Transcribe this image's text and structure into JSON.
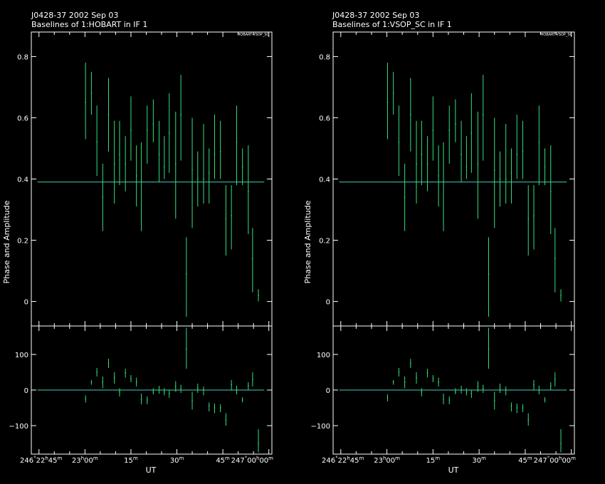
{
  "colors": {
    "background": "#000000",
    "frame": "#ffffff",
    "data": "#33e07a",
    "model": "#40d0c0"
  },
  "chart_data": [
    {
      "type": "scatter",
      "title": "J0428-37  2002 Sep 03",
      "subtitle": "Baselines of 1:HOBART in IF 1",
      "baseline_tag": "HOBART-VSOP_SC",
      "ylabel": "Phase and Amplitude",
      "xlabel": "UT",
      "xlim": [
        -17.5,
        61
      ],
      "x_tick_labels": [
        {
          "x": 0,
          "label": "246°22h45m"
        },
        {
          "x": 15,
          "label": "23h00m"
        },
        {
          "x": 30,
          "label": "15m"
        },
        {
          "x": 45,
          "label": "30m"
        },
        {
          "x": 60,
          "label": "45m"
        },
        {
          "x": 75,
          "label": "247°00h00m"
        }
      ],
      "amplitude": {
        "ylim": [
          -0.08,
          0.88
        ],
        "y_ticks": [
          0,
          0.2,
          0.4,
          0.6,
          0.8
        ],
        "y_tick_labels": [
          "0",
          "0.2",
          "0.4",
          "0.6",
          "0.8"
        ],
        "model": 0.39,
        "points": [
          {
            "x": 0.2,
            "y": 0.65,
            "lo": 0.53,
            "hi": 0.78
          },
          {
            "x": 2.1,
            "y": 0.68,
            "lo": 0.61,
            "hi": 0.75
          },
          {
            "x": 3.9,
            "y": 0.52,
            "lo": 0.41,
            "hi": 0.64
          },
          {
            "x": 5.8,
            "y": 0.34,
            "lo": 0.23,
            "hi": 0.45
          },
          {
            "x": 7.7,
            "y": 0.61,
            "lo": 0.49,
            "hi": 0.73
          },
          {
            "x": 9.6,
            "y": 0.45,
            "lo": 0.32,
            "hi": 0.59
          },
          {
            "x": 11.3,
            "y": 0.48,
            "lo": 0.38,
            "hi": 0.59
          },
          {
            "x": 13.2,
            "y": 0.45,
            "lo": 0.36,
            "hi": 0.54
          },
          {
            "x": 15.0,
            "y": 0.56,
            "lo": 0.46,
            "hi": 0.67
          },
          {
            "x": 16.8,
            "y": 0.41,
            "lo": 0.31,
            "hi": 0.51
          },
          {
            "x": 18.4,
            "y": 0.39,
            "lo": 0.23,
            "hi": 0.52
          },
          {
            "x": 20.3,
            "y": 0.56,
            "lo": 0.45,
            "hi": 0.64
          },
          {
            "x": 22.3,
            "y": 0.58,
            "lo": 0.52,
            "hi": 0.66
          },
          {
            "x": 24.2,
            "y": 0.48,
            "lo": 0.39,
            "hi": 0.59
          },
          {
            "x": 25.9,
            "y": 0.44,
            "lo": 0.4,
            "hi": 0.54
          },
          {
            "x": 27.5,
            "y": 0.55,
            "lo": 0.42,
            "hi": 0.68
          },
          {
            "x": 29.6,
            "y": 0.45,
            "lo": 0.27,
            "hi": 0.62
          },
          {
            "x": 31.3,
            "y": 0.61,
            "lo": 0.46,
            "hi": 0.74
          },
          {
            "x": 33.1,
            "y": 0.09,
            "lo": -0.05,
            "hi": 0.21
          },
          {
            "x": 35.0,
            "y": 0.43,
            "lo": 0.24,
            "hi": 0.6
          },
          {
            "x": 36.8,
            "y": 0.4,
            "lo": 0.31,
            "hi": 0.49
          },
          {
            "x": 38.7,
            "y": 0.4,
            "lo": 0.32,
            "hi": 0.58
          },
          {
            "x": 40.5,
            "y": 0.42,
            "lo": 0.32,
            "hi": 0.5
          },
          {
            "x": 42.3,
            "y": 0.48,
            "lo": 0.4,
            "hi": 0.61
          },
          {
            "x": 44.2,
            "y": 0.49,
            "lo": 0.4,
            "hi": 0.59
          },
          {
            "x": 46.0,
            "y": 0.27,
            "lo": 0.15,
            "hi": 0.38
          },
          {
            "x": 47.8,
            "y": 0.28,
            "lo": 0.17,
            "hi": 0.38
          },
          {
            "x": 49.5,
            "y": 0.52,
            "lo": 0.38,
            "hi": 0.64
          },
          {
            "x": 51.4,
            "y": 0.44,
            "lo": 0.38,
            "hi": 0.5
          },
          {
            "x": 53.3,
            "y": 0.36,
            "lo": 0.22,
            "hi": 0.51
          },
          {
            "x": 54.7,
            "y": 0.14,
            "lo": 0.03,
            "hi": 0.24
          },
          {
            "x": 56.6,
            "y": 0.02,
            "lo": 0.0,
            "hi": 0.04
          }
        ]
      },
      "phase": {
        "ylim": [
          -180,
          180
        ],
        "y_ticks": [
          -100,
          0,
          100
        ],
        "y_tick_labels": [
          "−100",
          "0",
          "100"
        ],
        "model": 0,
        "points": [
          {
            "x": 0.2,
            "y": -25,
            "lo": -35,
            "hi": -15
          },
          {
            "x": 2.1,
            "y": 22,
            "lo": 15,
            "hi": 28
          },
          {
            "x": 3.9,
            "y": 50,
            "lo": 38,
            "hi": 62
          },
          {
            "x": 5.8,
            "y": 22,
            "lo": 5,
            "hi": 38
          },
          {
            "x": 7.7,
            "y": 75,
            "lo": 62,
            "hi": 88
          },
          {
            "x": 9.6,
            "y": 35,
            "lo": 18,
            "hi": 50
          },
          {
            "x": 11.3,
            "y": -5,
            "lo": -18,
            "hi": 5
          },
          {
            "x": 13.2,
            "y": 48,
            "lo": 35,
            "hi": 60
          },
          {
            "x": 15.0,
            "y": 32,
            "lo": 22,
            "hi": 42
          },
          {
            "x": 16.8,
            "y": 22,
            "lo": 10,
            "hi": 35
          },
          {
            "x": 18.4,
            "y": -25,
            "lo": -40,
            "hi": -10
          },
          {
            "x": 20.3,
            "y": -28,
            "lo": -40,
            "hi": -18
          },
          {
            "x": 22.3,
            "y": -5,
            "lo": -12,
            "hi": 5
          },
          {
            "x": 24.2,
            "y": 0,
            "lo": -10,
            "hi": 12
          },
          {
            "x": 25.9,
            "y": -5,
            "lo": -15,
            "hi": 5
          },
          {
            "x": 27.5,
            "y": -10,
            "lo": -22,
            "hi": 0
          },
          {
            "x": 29.6,
            "y": 10,
            "lo": -5,
            "hi": 25
          },
          {
            "x": 31.3,
            "y": 5,
            "lo": -8,
            "hi": 15
          },
          {
            "x": 33.1,
            "y": 115,
            "lo": 60,
            "hi": 175
          },
          {
            "x": 35.0,
            "y": -30,
            "lo": -55,
            "hi": -5
          },
          {
            "x": 36.8,
            "y": 5,
            "lo": -8,
            "hi": 18
          },
          {
            "x": 38.7,
            "y": 0,
            "lo": -15,
            "hi": 10
          },
          {
            "x": 40.5,
            "y": -45,
            "lo": -60,
            "hi": -35
          },
          {
            "x": 42.3,
            "y": -50,
            "lo": -65,
            "hi": -38
          },
          {
            "x": 44.2,
            "y": -50,
            "lo": -62,
            "hi": -40
          },
          {
            "x": 46.0,
            "y": -85,
            "lo": -100,
            "hi": -65
          },
          {
            "x": 47.8,
            "y": 15,
            "lo": 0,
            "hi": 28
          },
          {
            "x": 49.5,
            "y": 0,
            "lo": -12,
            "hi": 12
          },
          {
            "x": 51.4,
            "y": -28,
            "lo": -35,
            "hi": -20
          },
          {
            "x": 53.3,
            "y": 12,
            "lo": 0,
            "hi": 22
          },
          {
            "x": 54.7,
            "y": 30,
            "lo": 10,
            "hi": 50
          },
          {
            "x": 56.6,
            "y": -150,
            "lo": -175,
            "hi": -110
          }
        ]
      }
    },
    {
      "type": "scatter",
      "title": "J0428-37  2002 Sep 03",
      "subtitle": "Baselines of 1:VSOP_SC in IF 1",
      "baseline_tag": "HOBART-VSOP_SC",
      "ylabel": "Phase and Amplitude",
      "xlabel": "UT",
      "xlim": [
        -17.5,
        61
      ],
      "x_tick_labels": [
        {
          "x": 0,
          "label": "246°22h45m"
        },
        {
          "x": 15,
          "label": "23h00m"
        },
        {
          "x": 30,
          "label": "15m"
        },
        {
          "x": 45,
          "label": "30m"
        },
        {
          "x": 60,
          "label": "45m"
        },
        {
          "x": 75,
          "label": "247°00h00m"
        }
      ],
      "amplitude": {
        "ylim": [
          -0.08,
          0.88
        ],
        "y_ticks": [
          0,
          0.2,
          0.4,
          0.6,
          0.8
        ],
        "y_tick_labels": [
          "0",
          "0.2",
          "0.4",
          "0.6",
          "0.8"
        ],
        "model": 0.39,
        "points": [
          {
            "x": 0.2,
            "y": 0.65,
            "lo": 0.53,
            "hi": 0.78
          },
          {
            "x": 2.1,
            "y": 0.68,
            "lo": 0.61,
            "hi": 0.75
          },
          {
            "x": 3.9,
            "y": 0.52,
            "lo": 0.41,
            "hi": 0.64
          },
          {
            "x": 5.8,
            "y": 0.34,
            "lo": 0.23,
            "hi": 0.45
          },
          {
            "x": 7.7,
            "y": 0.61,
            "lo": 0.49,
            "hi": 0.73
          },
          {
            "x": 9.6,
            "y": 0.45,
            "lo": 0.32,
            "hi": 0.59
          },
          {
            "x": 11.3,
            "y": 0.48,
            "lo": 0.38,
            "hi": 0.59
          },
          {
            "x": 13.2,
            "y": 0.45,
            "lo": 0.36,
            "hi": 0.54
          },
          {
            "x": 15.0,
            "y": 0.56,
            "lo": 0.46,
            "hi": 0.67
          },
          {
            "x": 16.8,
            "y": 0.41,
            "lo": 0.31,
            "hi": 0.51
          },
          {
            "x": 18.4,
            "y": 0.39,
            "lo": 0.23,
            "hi": 0.52
          },
          {
            "x": 20.3,
            "y": 0.56,
            "lo": 0.45,
            "hi": 0.64
          },
          {
            "x": 22.3,
            "y": 0.58,
            "lo": 0.52,
            "hi": 0.66
          },
          {
            "x": 24.2,
            "y": 0.48,
            "lo": 0.39,
            "hi": 0.59
          },
          {
            "x": 25.9,
            "y": 0.44,
            "lo": 0.4,
            "hi": 0.54
          },
          {
            "x": 27.5,
            "y": 0.55,
            "lo": 0.42,
            "hi": 0.68
          },
          {
            "x": 29.6,
            "y": 0.45,
            "lo": 0.27,
            "hi": 0.62
          },
          {
            "x": 31.3,
            "y": 0.61,
            "lo": 0.46,
            "hi": 0.74
          },
          {
            "x": 33.1,
            "y": 0.09,
            "lo": -0.05,
            "hi": 0.21
          },
          {
            "x": 35.0,
            "y": 0.43,
            "lo": 0.24,
            "hi": 0.6
          },
          {
            "x": 36.8,
            "y": 0.4,
            "lo": 0.31,
            "hi": 0.49
          },
          {
            "x": 38.7,
            "y": 0.4,
            "lo": 0.32,
            "hi": 0.58
          },
          {
            "x": 40.5,
            "y": 0.42,
            "lo": 0.32,
            "hi": 0.5
          },
          {
            "x": 42.3,
            "y": 0.48,
            "lo": 0.4,
            "hi": 0.61
          },
          {
            "x": 44.2,
            "y": 0.49,
            "lo": 0.4,
            "hi": 0.59
          },
          {
            "x": 46.0,
            "y": 0.27,
            "lo": 0.15,
            "hi": 0.38
          },
          {
            "x": 47.8,
            "y": 0.28,
            "lo": 0.17,
            "hi": 0.38
          },
          {
            "x": 49.5,
            "y": 0.52,
            "lo": 0.38,
            "hi": 0.64
          },
          {
            "x": 51.4,
            "y": 0.44,
            "lo": 0.38,
            "hi": 0.5
          },
          {
            "x": 53.3,
            "y": 0.36,
            "lo": 0.22,
            "hi": 0.51
          },
          {
            "x": 54.7,
            "y": 0.14,
            "lo": 0.03,
            "hi": 0.24
          },
          {
            "x": 56.6,
            "y": 0.02,
            "lo": 0.0,
            "hi": 0.04
          }
        ]
      },
      "phase": {
        "ylim": [
          -180,
          180
        ],
        "y_ticks": [
          -100,
          0,
          100
        ],
        "y_tick_labels": [
          "−100",
          "0",
          "100"
        ],
        "model": 0,
        "points": [
          {
            "x": 0.2,
            "y": -22,
            "lo": -32,
            "hi": -12
          },
          {
            "x": 2.1,
            "y": 22,
            "lo": 15,
            "hi": 28
          },
          {
            "x": 3.9,
            "y": 50,
            "lo": 38,
            "hi": 62
          },
          {
            "x": 5.8,
            "y": 22,
            "lo": 5,
            "hi": 38
          },
          {
            "x": 7.7,
            "y": 75,
            "lo": 62,
            "hi": 88
          },
          {
            "x": 9.6,
            "y": 35,
            "lo": 18,
            "hi": 50
          },
          {
            "x": 11.3,
            "y": -5,
            "lo": -18,
            "hi": 5
          },
          {
            "x": 13.2,
            "y": 48,
            "lo": 35,
            "hi": 60
          },
          {
            "x": 15.0,
            "y": 32,
            "lo": 22,
            "hi": 42
          },
          {
            "x": 16.8,
            "y": 22,
            "lo": 10,
            "hi": 35
          },
          {
            "x": 18.4,
            "y": -25,
            "lo": -40,
            "hi": -10
          },
          {
            "x": 20.3,
            "y": -28,
            "lo": -40,
            "hi": -18
          },
          {
            "x": 22.3,
            "y": -5,
            "lo": -12,
            "hi": 5
          },
          {
            "x": 24.2,
            "y": 0,
            "lo": -10,
            "hi": 12
          },
          {
            "x": 25.9,
            "y": -5,
            "lo": -15,
            "hi": 5
          },
          {
            "x": 27.5,
            "y": -10,
            "lo": -22,
            "hi": 0
          },
          {
            "x": 29.6,
            "y": 10,
            "lo": -5,
            "hi": 25
          },
          {
            "x": 31.3,
            "y": 5,
            "lo": -8,
            "hi": 15
          },
          {
            "x": 33.1,
            "y": 115,
            "lo": 60,
            "hi": 175
          },
          {
            "x": 35.0,
            "y": -30,
            "lo": -55,
            "hi": -5
          },
          {
            "x": 36.8,
            "y": 5,
            "lo": -8,
            "hi": 18
          },
          {
            "x": 38.7,
            "y": 0,
            "lo": -15,
            "hi": 10
          },
          {
            "x": 40.5,
            "y": -45,
            "lo": -60,
            "hi": -35
          },
          {
            "x": 42.3,
            "y": -50,
            "lo": -65,
            "hi": -38
          },
          {
            "x": 44.2,
            "y": -50,
            "lo": -62,
            "hi": -40
          },
          {
            "x": 46.0,
            "y": -85,
            "lo": -100,
            "hi": -65
          },
          {
            "x": 47.8,
            "y": 15,
            "lo": 0,
            "hi": 28
          },
          {
            "x": 49.5,
            "y": 0,
            "lo": -12,
            "hi": 12
          },
          {
            "x": 51.4,
            "y": -28,
            "lo": -35,
            "hi": -20
          },
          {
            "x": 53.3,
            "y": 12,
            "lo": 0,
            "hi": 22
          },
          {
            "x": 54.7,
            "y": 30,
            "lo": 10,
            "hi": 50
          },
          {
            "x": 56.6,
            "y": -150,
            "lo": -175,
            "hi": -110
          }
        ]
      }
    }
  ]
}
